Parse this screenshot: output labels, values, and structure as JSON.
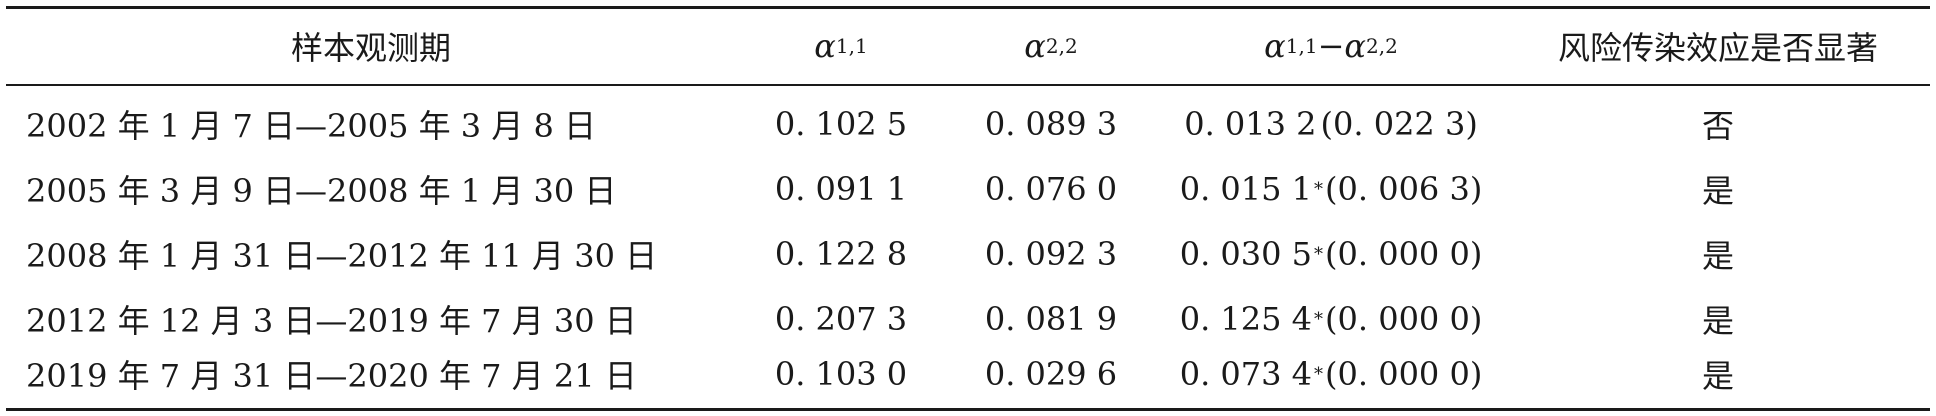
{
  "table": {
    "headers": {
      "period": "样本观测期",
      "alpha11": {
        "symbol": "α",
        "sub": "1,1"
      },
      "alpha22": {
        "symbol": "α",
        "sub": "2,2"
      },
      "diff": {
        "symbol1": "α",
        "sub1": "1,1",
        "op": "−",
        "symbol2": "α",
        "sub2": "2,2"
      },
      "significant": "风险传染效应是否显著"
    },
    "rows": [
      {
        "period": "2002 年 1 月 7 日—2005 年 3 月 8 日",
        "alpha11": "0. 102 5",
        "alpha22": "0. 089 3",
        "diff_value": "0. 013 2",
        "diff_star": "",
        "diff_p": "(0. 022 3)",
        "significant": "否"
      },
      {
        "period": "2005 年 3 月 9 日—2008 年 1 月 30 日",
        "alpha11": "0. 091 1",
        "alpha22": "0. 076 0",
        "diff_value": "0. 015 1",
        "diff_star": "*",
        "diff_p": "(0. 006 3)",
        "significant": "是"
      },
      {
        "period": "2008 年 1 月 31 日—2012 年 11 月 30 日",
        "alpha11": "0. 122 8",
        "alpha22": "0. 092 3",
        "diff_value": "0. 030 5",
        "diff_star": "*",
        "diff_p": "(0. 000 0)",
        "significant": "是"
      },
      {
        "period": "2012 年 12 月 3 日—2019 年 7 月 30 日",
        "alpha11": "0. 207 3",
        "alpha22": "0. 081 9",
        "diff_value": "0. 125 4",
        "diff_star": "*",
        "diff_p": "(0. 000 0)",
        "significant": "是"
      },
      {
        "period": "2019 年 7 月 31 日—2020 年 7 月 21 日",
        "alpha11": "0. 103 0",
        "alpha22": "0. 029 6",
        "diff_value": "0. 073 4",
        "diff_star": "*",
        "diff_p": "(0. 000 0)",
        "significant": "是"
      }
    ]
  }
}
